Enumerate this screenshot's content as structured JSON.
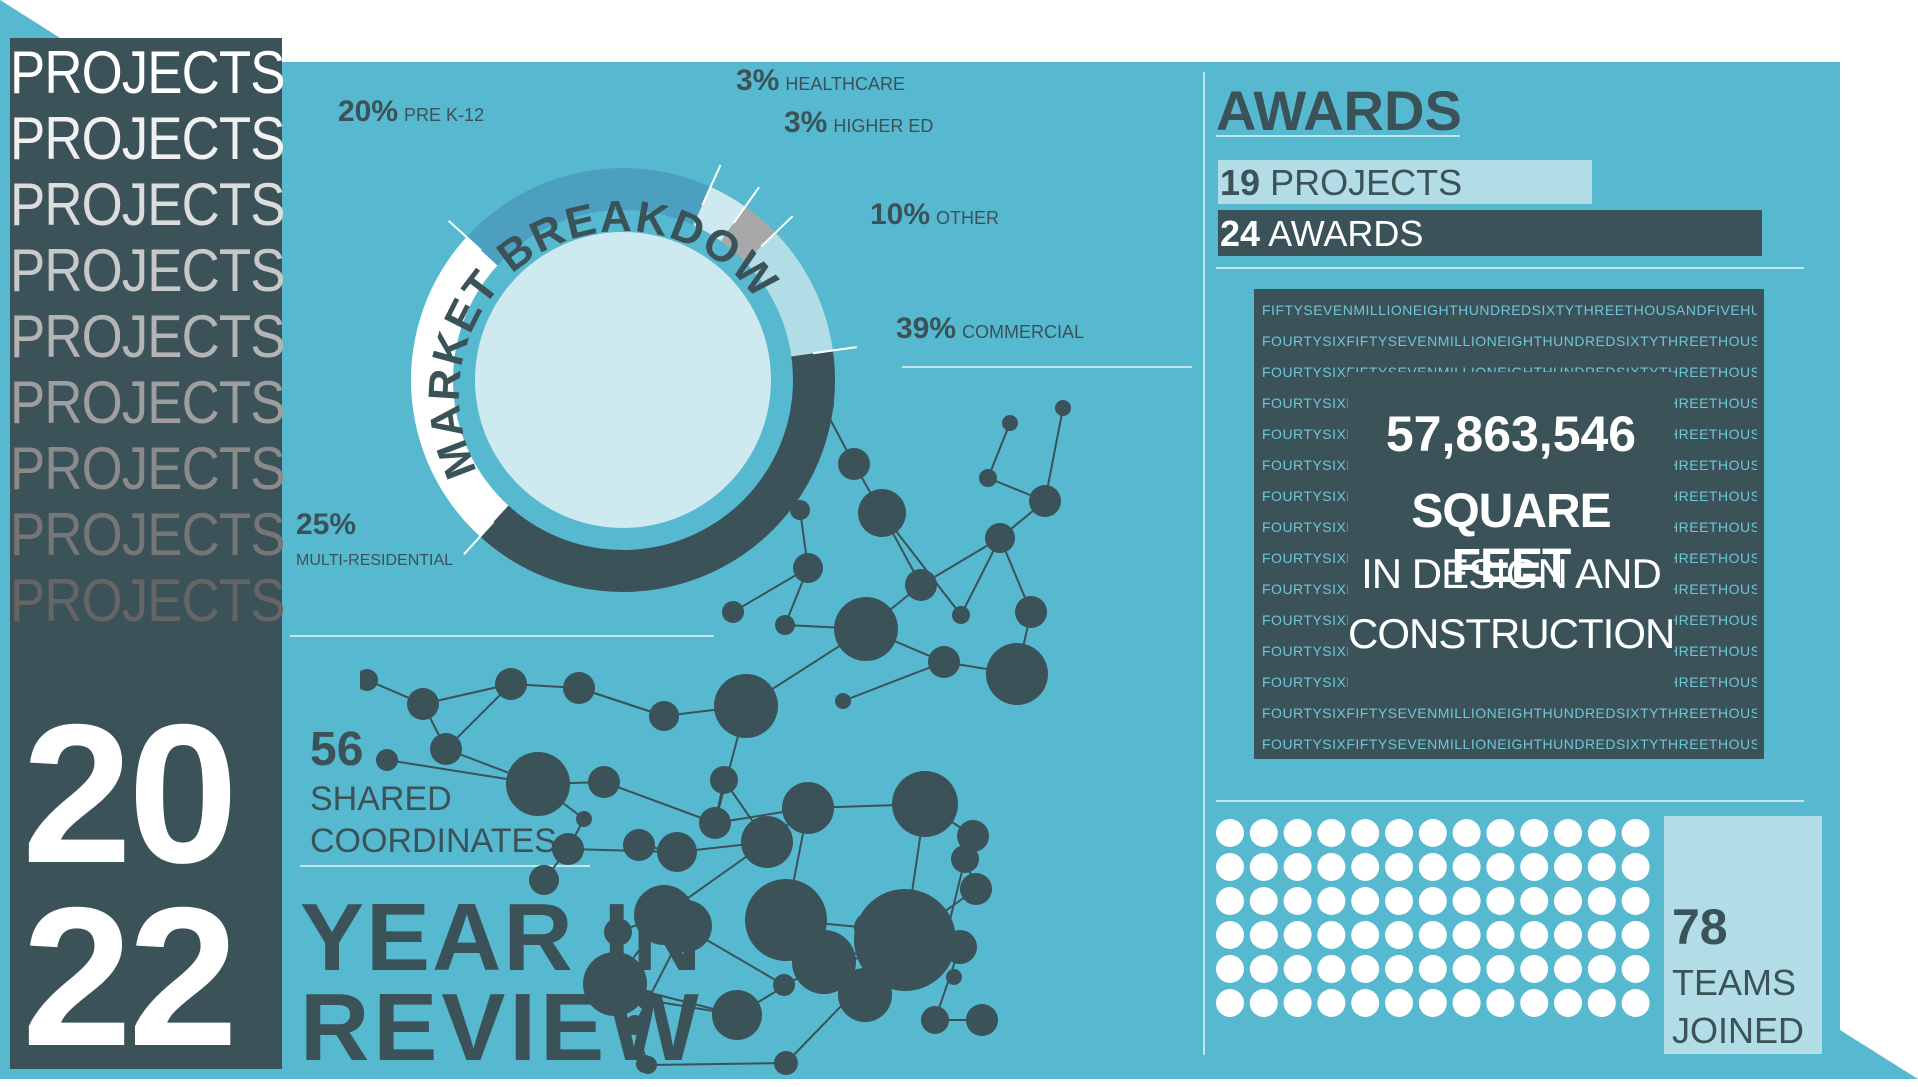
{
  "colors": {
    "panel": "#56b9d0",
    "dark": "#3a5258",
    "light": "#b3dde6",
    "white": "#ffffff",
    "gray": "#a8a8a8"
  },
  "sidebar": {
    "repeat_word": "PROJECTS",
    "year_top": "20",
    "year_bottom": "22"
  },
  "chart_data": {
    "type": "pie",
    "title": "MARKET BREAKDOWN",
    "slices": [
      {
        "label": "COMMERCIAL",
        "value": 39,
        "color": "#3a5258"
      },
      {
        "label": "MULTI-RESIDENTIAL",
        "value": 25,
        "color": "#ffffff"
      },
      {
        "label": "PRE K-12",
        "value": 20,
        "color": "#4d9fc0"
      },
      {
        "label": "HEALTHCARE",
        "value": 3,
        "color": "#cfe9f0"
      },
      {
        "label": "HIGHER ED",
        "value": 3,
        "color": "#a8a8a8"
      },
      {
        "label": "OTHER",
        "value": 10,
        "color": "#b3dde6"
      }
    ]
  },
  "market_labels": [
    {
      "pct": "20%",
      "name": "PRE K-12"
    },
    {
      "pct": "3%",
      "name": "HEALTHCARE"
    },
    {
      "pct": "3%",
      "name": "HIGHER ED"
    },
    {
      "pct": "10%",
      "name": "OTHER"
    },
    {
      "pct": "39%",
      "name": "COMMERCIAL"
    },
    {
      "pct": "25%",
      "name": "MULTI-RESIDENTIAL"
    }
  ],
  "coordinates": {
    "number": "56",
    "line1": "SHARED",
    "line2": "COORDINATES"
  },
  "review": {
    "line1": "YEAR IN",
    "line2": "REVIEW"
  },
  "awards": {
    "heading": "AWARDS",
    "projects_count": "19",
    "projects_label": "PROJECTS",
    "awards_count": "24",
    "awards_label": "AWARDS",
    "projects_bar_fraction": 0.79,
    "awards_bar_fraction": 1.0
  },
  "square_feet": {
    "background_text_first": "FIFTYSEVENMILLIONEIGHTHUNDREDSIXTYTHREETHOUSANDFIVEHUNDRED-",
    "background_text": "FOURTYSIXFIFTYSEVENMILLIONEIGHTHUNDREDSIXTYTHREETHOUSANDFIVEHUNDRED",
    "number": "57,863,546",
    "line1": "SQUARE FEET",
    "line2": "IN DESIGN AND",
    "line3": "CONSTRUCTION"
  },
  "teams": {
    "number": "78",
    "line1": "TEAMS",
    "line2": "JOINED",
    "dot_count": 78
  }
}
